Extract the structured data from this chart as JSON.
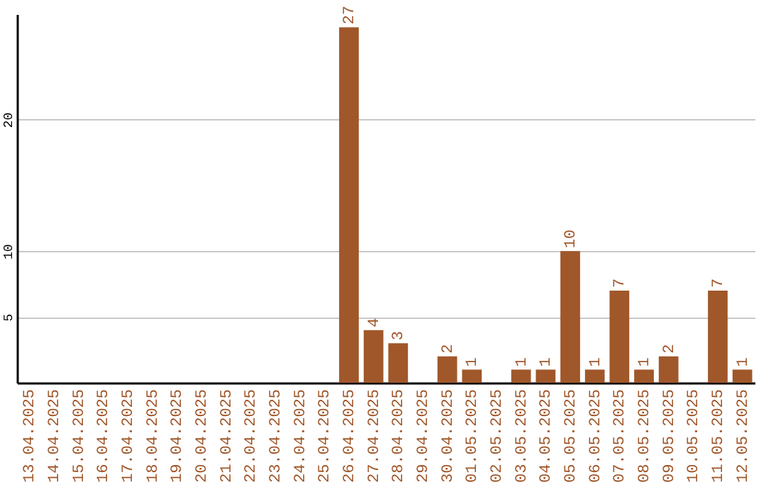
{
  "chart_data": {
    "type": "bar",
    "categories": [
      "13.04.2025",
      "14.04.2025",
      "15.04.2025",
      "16.04.2025",
      "17.04.2025",
      "18.04.2025",
      "19.04.2025",
      "20.04.2025",
      "21.04.2025",
      "22.04.2025",
      "23.04.2025",
      "24.04.2025",
      "25.04.2025",
      "26.04.2025",
      "27.04.2025",
      "28.04.2025",
      "29.04.2025",
      "30.04.2025",
      "01.05.2025",
      "02.05.2025",
      "03.05.2025",
      "04.05.2025",
      "05.05.2025",
      "06.05.2025",
      "07.05.2025",
      "08.05.2025",
      "09.05.2025",
      "10.05.2025",
      "11.05.2025",
      "12.05.2025"
    ],
    "values": [
      null,
      null,
      null,
      null,
      null,
      null,
      null,
      null,
      null,
      null,
      null,
      null,
      null,
      27,
      4,
      3,
      null,
      2,
      1,
      null,
      1,
      1,
      10,
      1,
      7,
      1,
      2,
      null,
      7,
      1
    ],
    "color": "#a0572a",
    "ylim": [
      0,
      28
    ],
    "yticks": [
      5,
      10,
      20
    ],
    "grid": "y",
    "data_labels": true
  }
}
